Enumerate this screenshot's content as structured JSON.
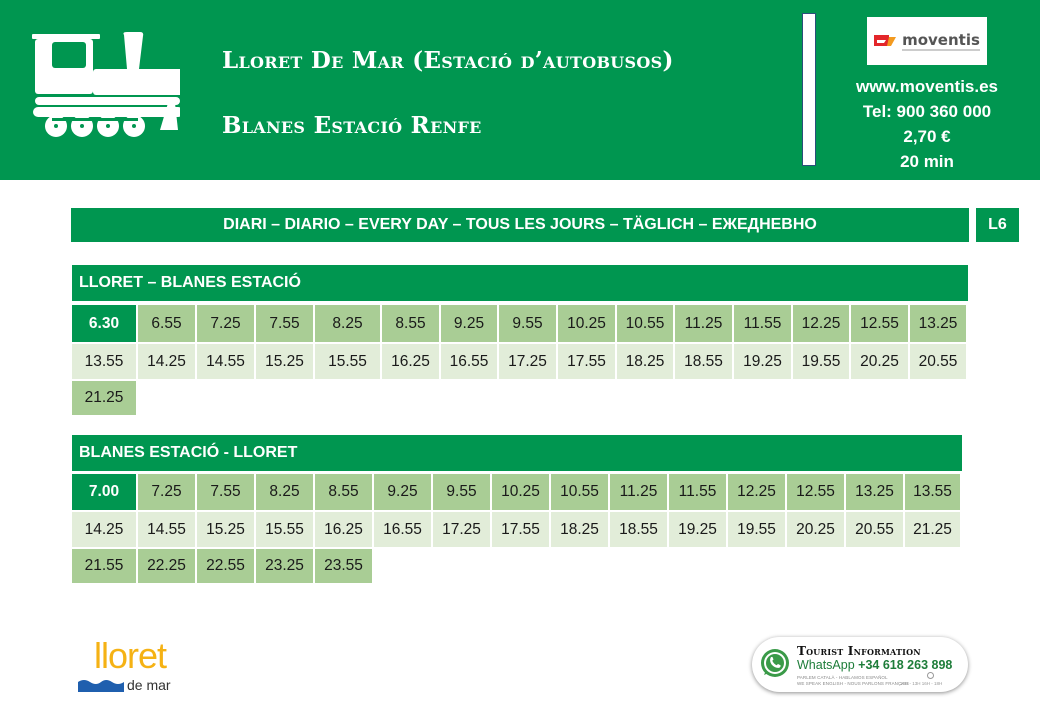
{
  "header": {
    "icon": "steam-locomotive-icon",
    "origin": "Lloret De Mar (Estació d’autobusos)",
    "destination": "Blanes Estació Renfe",
    "operator_logo": "moventis",
    "website": "www.moventis.es",
    "phone": "Tel: 900 360 000",
    "price": "2,70 €",
    "duration": "20 min",
    "colors": {
      "brand_green": "#009650",
      "divider_border": "#2a4f7a"
    }
  },
  "service_days": "DIARI – DIARIO – EVERY DAY – TOUS LES JOURS – TÄGLICH – ЕЖЕДНЕВНО",
  "line": "L6",
  "timetables": [
    {
      "title": "LLORET – BLANES ESTACIÓ",
      "rows": [
        [
          "6.30",
          "6.55",
          "7.25",
          "7.55",
          "8.25",
          "8.55",
          "9.25",
          "9.55",
          "10.25",
          "10.55",
          "11.25",
          "11.55",
          "12.25",
          "12.55",
          "13.25"
        ],
        [
          "13.55",
          "14.25",
          "14.55",
          "15.25",
          "15.55",
          "16.25",
          "16.55",
          "17.25",
          "17.55",
          "18.25",
          "18.55",
          "19.25",
          "19.55",
          "20.25",
          "20.55"
        ],
        [
          "21.25"
        ]
      ]
    },
    {
      "title": "BLANES ESTACIÓ - LLORET",
      "rows": [
        [
          "7.00",
          "7.25",
          "7.55",
          "8.25",
          "8.55",
          "9.25",
          "9.55",
          "10.25",
          "10.55",
          "11.25",
          "11.55",
          "12.25",
          "12.55",
          "13.25",
          "13.55"
        ],
        [
          "14.25",
          "14.55",
          "15.25",
          "15.55",
          "16.25",
          "16.55",
          "17.25",
          "17.55",
          "18.25",
          "18.55",
          "19.25",
          "19.55",
          "20.25",
          "20.55",
          "21.25"
        ],
        [
          "21.55",
          "22.25",
          "22.55",
          "23.25",
          "23.55"
        ]
      ]
    }
  ],
  "table_colors": {
    "first_cell": "#009650",
    "dark_row": "#a9cd95",
    "light_row": "#e2edd9"
  },
  "footer": {
    "city_logo": {
      "word": "lloret",
      "sub": "de mar",
      "color": "#f5b214",
      "wave_color": "#1f5fae"
    },
    "tourist_info": {
      "heading": "Tourist Information",
      "whatsapp_label": "WhatsApp",
      "whatsapp_number": "+34 618 263 898",
      "languages_line1": "PARLEM CATALÀ - HABLAMOS ESPAÑOL",
      "languages_line2": "WE SPEAK ENGLISH - NOUS PARLONS FRANÇAIS",
      "hours": "10H - 13H  16H - 18H"
    }
  }
}
